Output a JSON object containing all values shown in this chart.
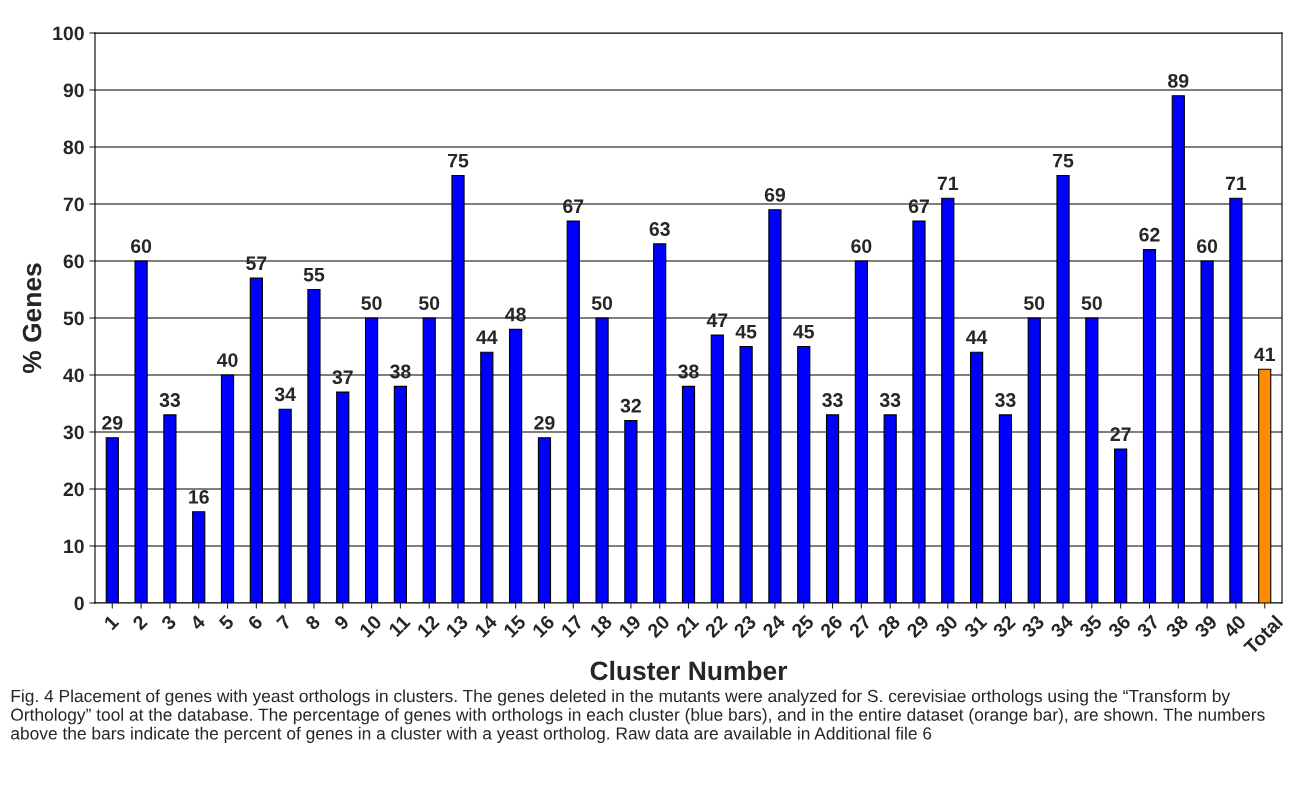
{
  "chart_data": {
    "type": "bar",
    "xlabel": "Cluster Number",
    "ylabel": "% Genes",
    "categories": [
      "1",
      "2",
      "3",
      "4",
      "5",
      "6",
      "7",
      "8",
      "9",
      "10",
      "11",
      "12",
      "13",
      "14",
      "15",
      "16",
      "17",
      "18",
      "19",
      "20",
      "21",
      "22",
      "23",
      "24",
      "25",
      "26",
      "27",
      "28",
      "29",
      "30",
      "31",
      "32",
      "33",
      "34",
      "35",
      "36",
      "37",
      "38",
      "39",
      "40",
      "Total"
    ],
    "values": [
      29,
      60,
      33,
      16,
      40,
      57,
      34,
      55,
      37,
      50,
      38,
      50,
      75,
      44,
      48,
      29,
      67,
      50,
      32,
      63,
      38,
      47,
      45,
      69,
      45,
      33,
      60,
      33,
      67,
      71,
      44,
      33,
      50,
      75,
      50,
      27,
      62,
      89,
      60,
      71,
      41
    ],
    "colors": [
      "#0000ff",
      "#0000ff",
      "#0000ff",
      "#0000ff",
      "#0000ff",
      "#0000ff",
      "#0000ff",
      "#0000ff",
      "#0000ff",
      "#0000ff",
      "#0000ff",
      "#0000ff",
      "#0000ff",
      "#0000ff",
      "#0000ff",
      "#0000ff",
      "#0000ff",
      "#0000ff",
      "#0000ff",
      "#0000ff",
      "#0000ff",
      "#0000ff",
      "#0000ff",
      "#0000ff",
      "#0000ff",
      "#0000ff",
      "#0000ff",
      "#0000ff",
      "#0000ff",
      "#0000ff",
      "#0000ff",
      "#0000ff",
      "#0000ff",
      "#0000ff",
      "#0000ff",
      "#0000ff",
      "#0000ff",
      "#0000ff",
      "#0000ff",
      "#0000ff",
      "#ff8c00"
    ],
    "ylim": [
      0,
      100
    ],
    "yticks": [
      0,
      10,
      20,
      30,
      40,
      50,
      60,
      70,
      80,
      90,
      100
    ],
    "grid": "y",
    "data_labels": true,
    "annotations": [
      "Fig. 4 Placement of genes with yeast orthologs in clusters. The genes deleted in the mutants were analyzed for S. cerevisiae orthologs using the “Transform by Orthology” tool at the database. The percentage of genes with orthologs in each cluster (blue bars), and in the entire dataset (orange bar), are shown. The numbers above the bars indicate the percent of genes in a cluster with a yeast ortholog. Raw data are available in Additional file 6"
    ]
  }
}
